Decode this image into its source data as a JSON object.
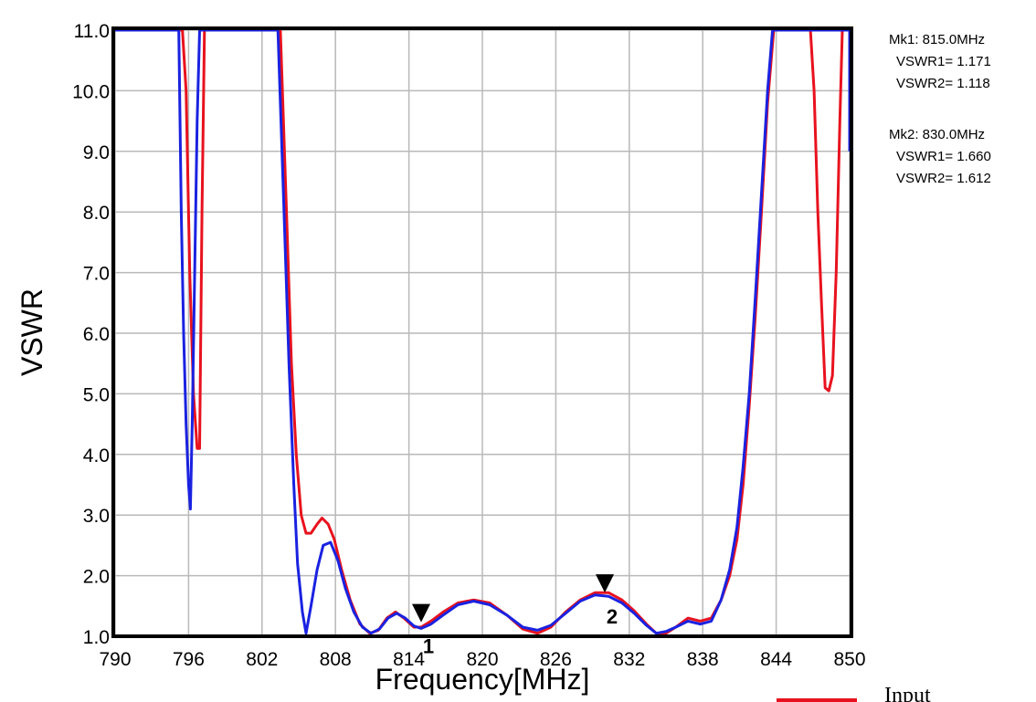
{
  "chart_data": {
    "type": "line",
    "title": "",
    "xlabel": "Frequency[MHz]",
    "ylabel": "VSWR",
    "xlim": [
      790,
      850
    ],
    "ylim": [
      1.0,
      11.0
    ],
    "x_ticks": [
      "790",
      "796",
      "802",
      "808",
      "814",
      "820",
      "826",
      "832",
      "838",
      "844",
      "850"
    ],
    "y_ticks": [
      "1.0",
      "2.0",
      "3.0",
      "4.0",
      "5.0",
      "6.0",
      "7.0",
      "8.0",
      "9.0",
      "10.0",
      "11.0"
    ],
    "grid": true,
    "legend_position": "bottom-right",
    "series": [
      {
        "name": "Input",
        "color": "#e8121e",
        "points": [
          [
            790,
            11
          ],
          [
            795.5,
            11
          ],
          [
            795.8,
            10
          ],
          [
            796.1,
            7
          ],
          [
            796.4,
            5
          ],
          [
            796.7,
            4.1
          ],
          [
            796.9,
            4.1
          ],
          [
            797.1,
            8
          ],
          [
            797.3,
            11
          ],
          [
            803.5,
            11
          ],
          [
            804,
            8
          ],
          [
            804.4,
            5.5
          ],
          [
            804.8,
            4
          ],
          [
            805.2,
            3
          ],
          [
            805.6,
            2.7
          ],
          [
            806,
            2.7
          ],
          [
            806.5,
            2.85
          ],
          [
            806.9,
            2.95
          ],
          [
            807.4,
            2.85
          ],
          [
            807.9,
            2.6
          ],
          [
            808.5,
            2.1
          ],
          [
            809.2,
            1.6
          ],
          [
            810,
            1.2
          ],
          [
            810.8,
            1.05
          ],
          [
            811.5,
            1.1
          ],
          [
            812.2,
            1.3
          ],
          [
            812.9,
            1.4
          ],
          [
            813.6,
            1.3
          ],
          [
            814.4,
            1.15
          ],
          [
            815,
            1.15
          ],
          [
            815.8,
            1.25
          ],
          [
            816.8,
            1.4
          ],
          [
            818,
            1.55
          ],
          [
            819.3,
            1.6
          ],
          [
            820.6,
            1.55
          ],
          [
            822,
            1.35
          ],
          [
            823.3,
            1.12
          ],
          [
            824.5,
            1.05
          ],
          [
            825.6,
            1.15
          ],
          [
            826.8,
            1.4
          ],
          [
            828,
            1.6
          ],
          [
            829.2,
            1.72
          ],
          [
            830.3,
            1.72
          ],
          [
            831.4,
            1.6
          ],
          [
            832.4,
            1.42
          ],
          [
            833.4,
            1.2
          ],
          [
            834.2,
            1.05
          ],
          [
            835,
            1.05
          ],
          [
            835.8,
            1.15
          ],
          [
            836.8,
            1.3
          ],
          [
            837.8,
            1.25
          ],
          [
            838.7,
            1.3
          ],
          [
            839.5,
            1.6
          ],
          [
            840.2,
            2
          ],
          [
            840.8,
            2.6
          ],
          [
            841.3,
            3.5
          ],
          [
            841.8,
            4.8
          ],
          [
            842.3,
            6.3
          ],
          [
            842.8,
            8
          ],
          [
            843.3,
            9.8
          ],
          [
            843.8,
            11
          ],
          [
            846.8,
            11
          ],
          [
            847.1,
            10
          ],
          [
            847.4,
            8
          ],
          [
            847.7,
            6.5
          ],
          [
            848,
            5.1
          ],
          [
            848.3,
            5.05
          ],
          [
            848.6,
            5.3
          ],
          [
            848.9,
            7
          ],
          [
            849.2,
            9.5
          ],
          [
            849.4,
            11
          ],
          [
            850,
            11
          ]
        ]
      },
      {
        "name": "",
        "color": "#1a22e0",
        "points": [
          [
            790,
            11
          ],
          [
            795.2,
            11
          ],
          [
            795.4,
            8
          ],
          [
            795.6,
            6
          ],
          [
            795.8,
            4.5
          ],
          [
            796,
            3.5
          ],
          [
            796.15,
            3.1
          ],
          [
            796.3,
            4.5
          ],
          [
            796.5,
            7
          ],
          [
            796.7,
            9.5
          ],
          [
            796.9,
            11
          ],
          [
            803.3,
            11
          ],
          [
            803.8,
            8
          ],
          [
            804.2,
            5.5
          ],
          [
            804.6,
            3.5
          ],
          [
            804.9,
            2.2
          ],
          [
            805.3,
            1.4
          ],
          [
            805.6,
            1.05
          ],
          [
            806,
            1.5
          ],
          [
            806.5,
            2.1
          ],
          [
            807,
            2.5
          ],
          [
            807.6,
            2.55
          ],
          [
            808.2,
            2.25
          ],
          [
            808.8,
            1.8
          ],
          [
            809.5,
            1.4
          ],
          [
            810.2,
            1.15
          ],
          [
            810.9,
            1.05
          ],
          [
            811.6,
            1.12
          ],
          [
            812.3,
            1.3
          ],
          [
            813,
            1.38
          ],
          [
            813.7,
            1.3
          ],
          [
            814.4,
            1.17
          ],
          [
            815,
            1.13
          ],
          [
            815.8,
            1.2
          ],
          [
            816.8,
            1.35
          ],
          [
            818,
            1.52
          ],
          [
            819.3,
            1.58
          ],
          [
            820.6,
            1.52
          ],
          [
            822,
            1.35
          ],
          [
            823.3,
            1.15
          ],
          [
            824.5,
            1.1
          ],
          [
            825.6,
            1.18
          ],
          [
            826.8,
            1.38
          ],
          [
            828,
            1.58
          ],
          [
            829.2,
            1.68
          ],
          [
            830.3,
            1.66
          ],
          [
            831.4,
            1.55
          ],
          [
            832.4,
            1.38
          ],
          [
            833.4,
            1.18
          ],
          [
            834.2,
            1.05
          ],
          [
            835,
            1.08
          ],
          [
            835.8,
            1.15
          ],
          [
            836.8,
            1.25
          ],
          [
            837.8,
            1.2
          ],
          [
            838.7,
            1.25
          ],
          [
            839.5,
            1.6
          ],
          [
            840.2,
            2.1
          ],
          [
            840.8,
            2.8
          ],
          [
            841.3,
            3.8
          ],
          [
            841.8,
            5
          ],
          [
            842.3,
            6.6
          ],
          [
            842.8,
            8.3
          ],
          [
            843.3,
            10
          ],
          [
            843.7,
            11
          ],
          [
            850,
            11
          ],
          [
            850,
            9
          ]
        ]
      }
    ],
    "markers": [
      {
        "id": "1",
        "label": "Mk1:  815.0MHz",
        "x": 815.0,
        "vswr1_label": "VSWR1= 1.171",
        "vswr2_label": "VSWR2= 1.118",
        "y": 1.171
      },
      {
        "id": "2",
        "label": "Mk2:  830.0MHz",
        "x": 830.0,
        "vswr1_label": "VSWR1= 1.660",
        "vswr2_label": "VSWR2= 1.612",
        "y": 1.66
      }
    ]
  }
}
